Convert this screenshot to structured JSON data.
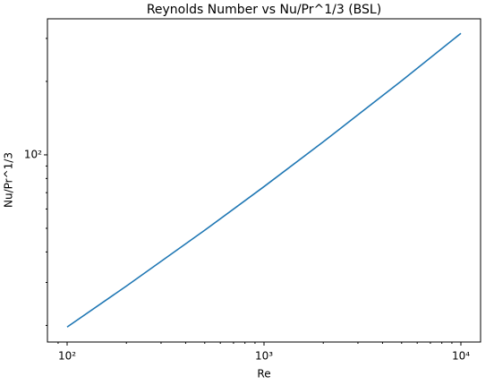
{
  "chart_data": {
    "type": "line",
    "title": "Reynolds Number vs Nu/Pr^1/3 (BSL)",
    "x_label": "Re",
    "y_label": "Nu/Pr^1/3",
    "x": [
      100,
      200,
      500,
      1000,
      2000,
      5000,
      10000
    ],
    "series": [
      {
        "color": "#1f77b4",
        "values": [
          19.7,
          29.0,
          49.1,
          74.1,
          113.1,
          201.2,
          314.8
        ]
      }
    ],
    "xscale": "log",
    "yscale": "log",
    "xlim": [
      79.43,
      12589
    ],
    "ylim": [
      17.1,
      361
    ],
    "xticks": [
      {
        "value": 100,
        "label": "10²"
      },
      {
        "value": 1000,
        "label": "10³"
      },
      {
        "value": 10000,
        "label": "10⁴"
      }
    ],
    "yticks": [
      {
        "value": 100,
        "label": "10²"
      }
    ],
    "x_minor_ticks": [
      90,
      200,
      300,
      400,
      500,
      600,
      700,
      800,
      900,
      2000,
      3000,
      4000,
      5000,
      6000,
      7000,
      8000,
      9000
    ],
    "y_minor_ticks": [
      20,
      30,
      40,
      50,
      60,
      70,
      80,
      90,
      200,
      300
    ],
    "grid": false
  }
}
